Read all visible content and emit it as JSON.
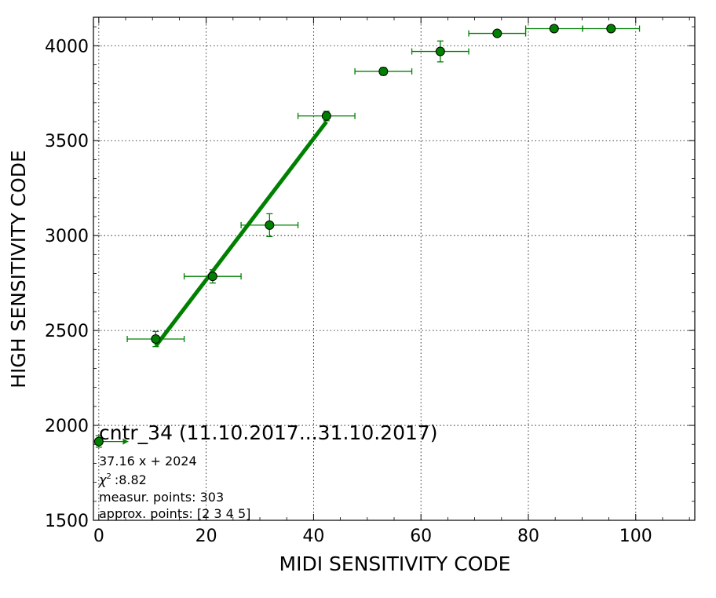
{
  "chart_data": {
    "type": "scatter",
    "xlabel": "MIDI SENSITIVITY CODE",
    "ylabel": "HIGH SENSITIVITY CODE",
    "xlim": [
      -1,
      111
    ],
    "ylim": [
      1500,
      4150
    ],
    "xticks": [
      0,
      20,
      40,
      60,
      80,
      100
    ],
    "xtick_labels": [
      "0",
      "20",
      "40",
      "60",
      "80",
      "100"
    ],
    "yticks": [
      1500,
      2000,
      2500,
      3000,
      3500,
      4000
    ],
    "ytick_labels": [
      "1500",
      "2000",
      "2500",
      "3000",
      "3500",
      "4000"
    ],
    "grid": true,
    "color": "#008000",
    "points": [
      {
        "x": 0,
        "y": 1915,
        "xerr_minus": 0,
        "xerr_plus": 5.5,
        "yerr": 30
      },
      {
        "x": 10.6,
        "y": 2455,
        "xerr_minus": 5.3,
        "xerr_plus": 5.3,
        "yerr": 40
      },
      {
        "x": 21.2,
        "y": 2785,
        "xerr_minus": 5.3,
        "xerr_plus": 5.3,
        "yerr": 35
      },
      {
        "x": 31.8,
        "y": 3055,
        "xerr_minus": 5.3,
        "xerr_plus": 5.3,
        "yerr": 60
      },
      {
        "x": 42.4,
        "y": 3630,
        "xerr_minus": 5.3,
        "xerr_plus": 5.3,
        "yerr": 25
      },
      {
        "x": 53.0,
        "y": 3865,
        "xerr_minus": 5.3,
        "xerr_plus": 5.3,
        "yerr": 20
      },
      {
        "x": 63.6,
        "y": 3970,
        "xerr_minus": 5.3,
        "xerr_plus": 5.3,
        "yerr": 55
      },
      {
        "x": 74.2,
        "y": 4065,
        "xerr_minus": 5.3,
        "xerr_plus": 5.3,
        "yerr": 15
      },
      {
        "x": 84.8,
        "y": 4090,
        "xerr_minus": 5.3,
        "xerr_plus": 5.3,
        "yerr": 10
      },
      {
        "x": 95.4,
        "y": 4090,
        "xerr_minus": 5.3,
        "xerr_plus": 5.3,
        "yerr": 10
      }
    ],
    "fit_line": {
      "x": [
        10.6,
        42.4
      ],
      "slope": 37.16,
      "intercept": 2024
    },
    "annotations": {
      "title": "cntr_34 (11.10.2017...31.10.2017)",
      "equation": "37.16 x + 2024",
      "chi2_symbol": "χ",
      "chi2_value": ":8.82",
      "measur_points": "measur. points: 303",
      "approx_points": "approx. points: [2 3 4 5]"
    }
  }
}
